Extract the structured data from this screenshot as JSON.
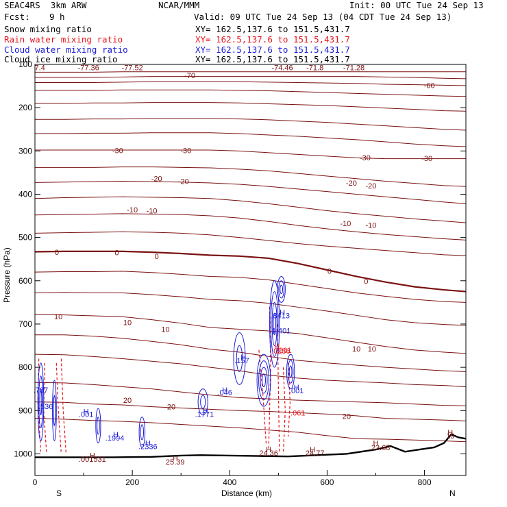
{
  "header": {
    "model": "SEAC4RS  3km ARW",
    "org": "NCAR/MMM",
    "init": "Init: 00 UTC Tue 24 Sep 13",
    "fcst_label": "Fcst:",
    "fcst_value": "9 h",
    "valid": "Valid: 09 UTC Tue 24 Sep 13 (04 CDT Tue 24 Sep 13)"
  },
  "fields": [
    {
      "name": "Snow mixing ratio",
      "xy": "XY= 162.5,137.6 to 151.5,431.7",
      "color": "#000000"
    },
    {
      "name": "Rain water mixing ratio",
      "xy": "XY= 162.5,137.6 to 151.5,431.7",
      "color": "#e8141b"
    },
    {
      "name": "Cloud water mixing ratio",
      "xy": "XY= 162.5,137.6 to 151.5,431.7",
      "color": "#1a1ad8"
    },
    {
      "name": "Cloud ice mixing ratio",
      "xy": "XY= 162.5,137.6 to 151.5,431.7",
      "color": "#000000"
    }
  ],
  "colors": {
    "temperature_contour": "#7a1010",
    "zero_isotherm": "#7a1010",
    "rain": "#e8141b",
    "cloud_water": "#1a1ad8",
    "terrain": "#000000"
  },
  "chart_data": {
    "type": "cross-section",
    "xlabel": "Distance (km)",
    "ylabel": "Pressure (hPa)",
    "xlim": [
      0,
      885
    ],
    "ylim": [
      1050,
      100
    ],
    "x_ticks": [
      0,
      200,
      400,
      600,
      800
    ],
    "y_ticks": [
      100,
      200,
      300,
      400,
      500,
      600,
      700,
      800,
      900,
      1000
    ],
    "y_tick_labels": [
      "100",
      "200",
      "300",
      "400",
      "500",
      "600",
      "700",
      "800",
      "900",
      "1000"
    ],
    "x_tick_labels": [
      "0",
      "200",
      "400",
      "600",
      "800"
    ],
    "left_endpoint": "S",
    "right_endpoint": "N",
    "isotherm_labels": [
      {
        "text": "7.4",
        "x": 10,
        "p": 107
      },
      {
        "text": "-77.36",
        "x": 110,
        "p": 107
      },
      {
        "text": "-77.52",
        "x": 200,
        "p": 107
      },
      {
        "text": "-70",
        "x": 318,
        "p": 125
      },
      {
        "text": "-74.46",
        "x": 508,
        "p": 107
      },
      {
        "text": "-71.8",
        "x": 575,
        "p": 107
      },
      {
        "text": "-71.28",
        "x": 655,
        "p": 107
      },
      {
        "text": "-60",
        "x": 810,
        "p": 148
      },
      {
        "text": "-30",
        "x": 170,
        "p": 299
      },
      {
        "text": "-30",
        "x": 310,
        "p": 299
      },
      {
        "text": "-30",
        "x": 678,
        "p": 315
      },
      {
        "text": "-30",
        "x": 805,
        "p": 317
      },
      {
        "text": "-20",
        "x": 250,
        "p": 364
      },
      {
        "text": "-20",
        "x": 305,
        "p": 370
      },
      {
        "text": "-20",
        "x": 650,
        "p": 374
      },
      {
        "text": "-20",
        "x": 690,
        "p": 380
      },
      {
        "text": "-10",
        "x": 200,
        "p": 436
      },
      {
        "text": "-10",
        "x": 240,
        "p": 438
      },
      {
        "text": "-10",
        "x": 638,
        "p": 467
      },
      {
        "text": "-10",
        "x": 690,
        "p": 471
      },
      {
        "text": "0",
        "x": 45,
        "p": 534
      },
      {
        "text": "0",
        "x": 168,
        "p": 535
      },
      {
        "text": "0",
        "x": 250,
        "p": 543
      },
      {
        "text": "0",
        "x": 605,
        "p": 577
      },
      {
        "text": "0",
        "x": 680,
        "p": 601
      },
      {
        "text": "10",
        "x": 48,
        "p": 683
      },
      {
        "text": "10",
        "x": 190,
        "p": 696
      },
      {
        "text": "10",
        "x": 268,
        "p": 712
      },
      {
        "text": "10",
        "x": 660,
        "p": 757
      },
      {
        "text": "10",
        "x": 692,
        "p": 757
      },
      {
        "text": "20",
        "x": 190,
        "p": 876
      },
      {
        "text": "20",
        "x": 280,
        "p": 891
      },
      {
        "text": "20",
        "x": 640,
        "p": 913
      }
    ],
    "cloud_water_labels": [
      {
        "text": "H",
        "x": 508,
        "p": 672
      },
      {
        "text": ".8413",
        "x": 504,
        "p": 680
      },
      {
        "text": "1.401",
        "x": 506,
        "p": 715
      },
      {
        "text": "H",
        "x": 428,
        "p": 776
      },
      {
        "text": ".157",
        "x": 425,
        "p": 784
      },
      {
        "text": "H",
        "x": 390,
        "p": 852
      },
      {
        "text": ".046",
        "x": 390,
        "p": 858
      },
      {
        "text": "H",
        "x": 537,
        "p": 846
      },
      {
        "text": ".001",
        "x": 537,
        "p": 854
      },
      {
        "text": "H",
        "x": 350,
        "p": 900
      },
      {
        "text": ".1771",
        "x": 348,
        "p": 908
      },
      {
        "text": "H",
        "x": 166,
        "p": 955
      },
      {
        "text": ".1994",
        "x": 164,
        "p": 963
      },
      {
        "text": "H",
        "x": 232,
        "p": 975
      },
      {
        "text": ".2336",
        "x": 232,
        "p": 983
      },
      {
        "text": "H",
        "x": 105,
        "p": 902
      },
      {
        "text": ".001",
        "x": 105,
        "p": 908
      },
      {
        "text": ".737",
        "x": 12,
        "p": 852
      },
      {
        "text": ".536",
        "x": 22,
        "p": 890
      }
    ],
    "rain_labels": [
      {
        "text": ".001",
        "x": 512,
        "p": 760
      },
      {
        "text": "H",
        "x": 497,
        "p": 752
      },
      {
        "text": ".0236",
        "x": 505,
        "p": 762
      },
      {
        "text": ".061",
        "x": 540,
        "p": 905
      }
    ],
    "temperature_extrema": [
      {
        "text": "H",
        "x": 118,
        "p": 1003
      },
      {
        "text": ".001531",
        "x": 118,
        "p": 1012
      },
      {
        "text": "H",
        "x": 288,
        "p": 1010
      },
      {
        "text": "25.39",
        "x": 288,
        "p": 1018
      },
      {
        "text": "H",
        "x": 480,
        "p": 990
      },
      {
        "text": "24.36",
        "x": 480,
        "p": 998
      },
      {
        "text": "H",
        "x": 570,
        "p": 990
      },
      {
        "text": "24.77",
        "x": 575,
        "p": 998
      },
      {
        "text": "H",
        "x": 700,
        "p": 975
      },
      {
        "text": "23.68",
        "x": 710,
        "p": 985
      },
      {
        "text": "H",
        "x": 853,
        "p": 950
      },
      {
        "text": "19",
        "x": 853,
        "p": 958
      }
    ]
  }
}
